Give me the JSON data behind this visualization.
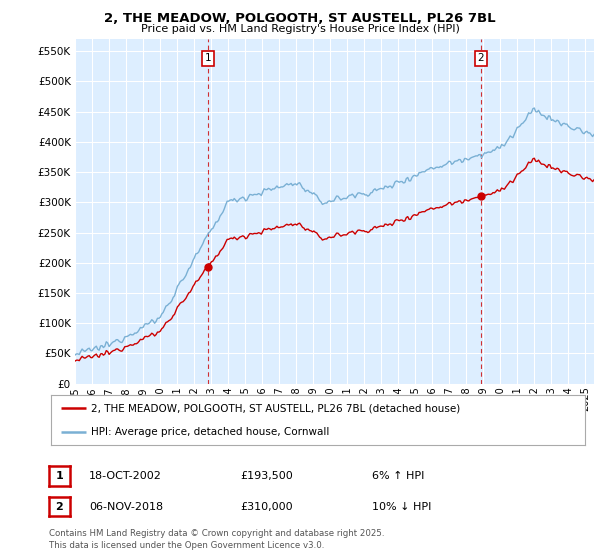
{
  "title_line1": "2, THE MEADOW, POLGOOTH, ST AUSTELL, PL26 7BL",
  "title_line2": "Price paid vs. HM Land Registry's House Price Index (HPI)",
  "legend_label_red": "2, THE MEADOW, POLGOOTH, ST AUSTELL, PL26 7BL (detached house)",
  "legend_label_blue": "HPI: Average price, detached house, Cornwall",
  "annotation1_date": "18-OCT-2002",
  "annotation1_price": "£193,500",
  "annotation1_hpi": "6% ↑ HPI",
  "annotation2_date": "06-NOV-2018",
  "annotation2_price": "£310,000",
  "annotation2_hpi": "10% ↓ HPI",
  "footer": "Contains HM Land Registry data © Crown copyright and database right 2025.\nThis data is licensed under the Open Government Licence v3.0.",
  "sale1_year": 2002.8,
  "sale1_price": 193500,
  "sale2_year": 2018.85,
  "sale2_price": 310000,
  "color_red": "#cc0000",
  "color_blue": "#7ab0d4",
  "color_dashed": "#cc0000",
  "background_color": "#ffffff",
  "chart_bg": "#ddeeff",
  "grid_color": "#ffffff",
  "ylim_min": 0,
  "ylim_max": 570000,
  "ytick_step": 50000,
  "xmin": 1995,
  "xmax": 2025.5
}
